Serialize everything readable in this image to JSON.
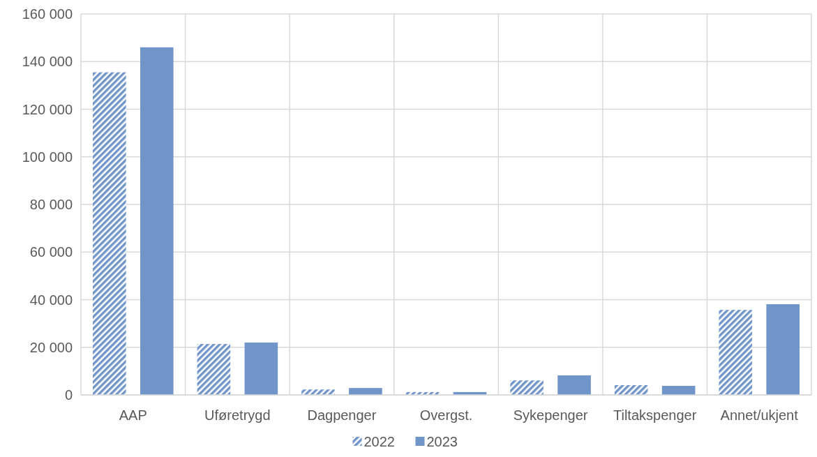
{
  "chart_data": {
    "type": "bar",
    "categories": [
      "AAP",
      "Uføretrygd",
      "Dagpenger",
      "Overgst.",
      "Sykepenger",
      "Tiltakspenger",
      "Annet/ukjent"
    ],
    "series": [
      {
        "name": "2022",
        "color": "#6f95c9",
        "values": [
          135500,
          21400,
          2300,
          1200,
          6100,
          4100,
          35700
        ]
      },
      {
        "name": "2023",
        "color": "#6f95c9",
        "values": [
          146000,
          22000,
          2900,
          1200,
          8200,
          3800,
          38100
        ]
      }
    ],
    "ylim": [
      0,
      160000
    ],
    "yticks": [
      {
        "value": 0,
        "label": "0"
      },
      {
        "value": 20000,
        "label": "20 000"
      },
      {
        "value": 40000,
        "label": "40 000"
      },
      {
        "value": 60000,
        "label": "60 000"
      },
      {
        "value": 80000,
        "label": "80 000"
      },
      {
        "value": 100000,
        "label": "100 000"
      },
      {
        "value": 120000,
        "label": "120 000"
      },
      {
        "value": 140000,
        "label": "140 000"
      },
      {
        "value": 160000,
        "label": "160 000"
      }
    ],
    "grid": true,
    "legend": "bottom"
  }
}
